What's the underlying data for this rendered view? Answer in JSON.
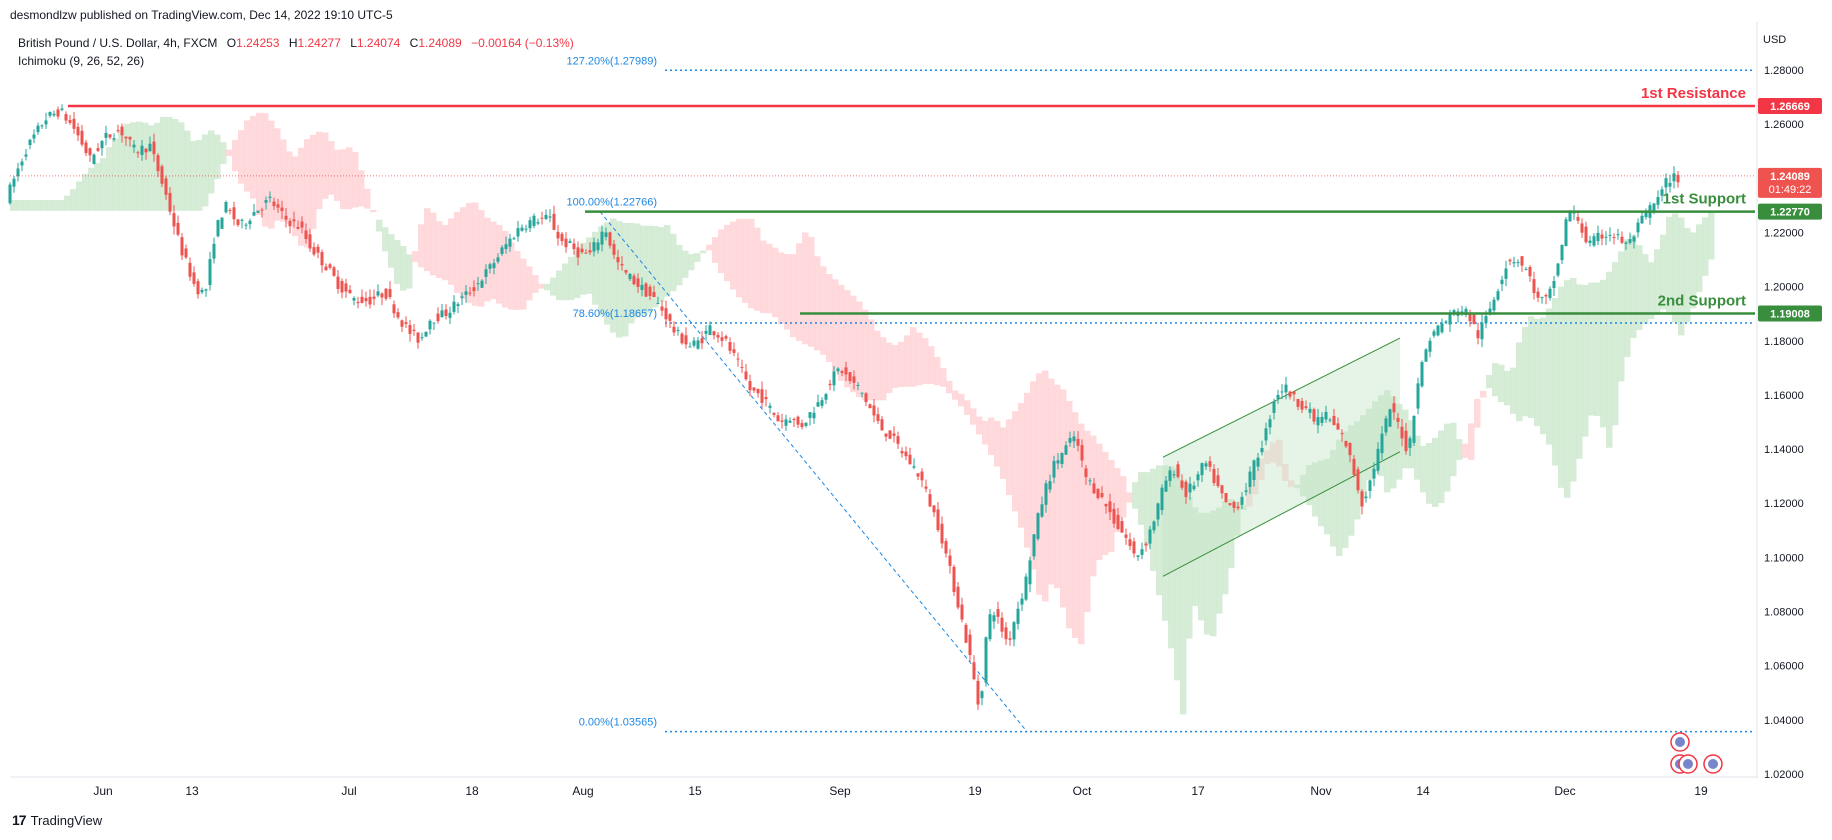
{
  "header": {
    "published": "desmondlzw published on TradingView.com, Dec 14, 2022 19:10 UTC-5",
    "symbol": "British Pound / U.S. Dollar, 4h, FXCM",
    "ohlc": {
      "o_label": "O",
      "o": "1.24253",
      "h_label": "H",
      "h": "1.24277",
      "l_label": "L",
      "l": "1.24074",
      "c_label": "C",
      "c": "1.24089",
      "change": "−0.00164 (−0.13%)"
    },
    "indicator": "Ichimoku (9, 26, 52, 26)",
    "currency": "USD"
  },
  "footer": {
    "brand": "TradingView",
    "brand_mark": "17"
  },
  "colors": {
    "bull": "#26a69a",
    "bear": "#ef5350",
    "support": "#388e3c",
    "resistance": "#f23645",
    "fib": "#1e88e5",
    "cloud_bull": "#c8e6c9",
    "cloud_bear": "#ffcdd2"
  },
  "chart_data": {
    "type": "candlestick",
    "timeframe": "4h",
    "x_tick_labels": [
      "Jun",
      "13",
      "Jul",
      "18",
      "Aug",
      "15",
      "Sep",
      "19",
      "Oct",
      "17",
      "Nov",
      "14",
      "Dec",
      "19"
    ],
    "y_tick_labels": [
      "1.28000",
      "1.26000",
      "1.24000",
      "1.22000",
      "1.20000",
      "1.18000",
      "1.16000",
      "1.14000",
      "1.12000",
      "1.10000",
      "1.08000",
      "1.06000",
      "1.04000",
      "1.02000"
    ],
    "ylim": [
      1.0175,
      1.305
    ],
    "last_price": {
      "value": 1.24089,
      "label": "1.24089",
      "countdown": "01:49:22"
    },
    "levels": [
      {
        "name": "1st Resistance",
        "value": 1.26669,
        "label": "1.26669",
        "kind": "resistance"
      },
      {
        "name": "1st Support",
        "value": 1.2277,
        "label": "1.22770",
        "kind": "support"
      },
      {
        "name": "2nd Support",
        "value": 1.19008,
        "label": "1.19008",
        "kind": "support"
      }
    ],
    "fibonacci": [
      {
        "label": "127.20%(1.27989)",
        "value": 1.27989
      },
      {
        "label": "100.00%(1.22766)",
        "value": 1.22766
      },
      {
        "label": "78.60%(1.18657)",
        "value": 1.18657
      },
      {
        "label": "0.00%(1.03565)",
        "value": 1.03565
      }
    ],
    "price_path": [
      [
        0,
        1.228
      ],
      [
        10,
        1.236
      ],
      [
        25,
        1.25
      ],
      [
        45,
        1.262
      ],
      [
        60,
        1.265
      ],
      [
        75,
        1.258
      ],
      [
        90,
        1.247
      ],
      [
        105,
        1.255
      ],
      [
        120,
        1.258
      ],
      [
        135,
        1.25
      ],
      [
        150,
        1.252
      ],
      [
        165,
        1.235
      ],
      [
        180,
        1.215
      ],
      [
        195,
        1.2
      ],
      [
        205,
        1.197
      ],
      [
        215,
        1.22
      ],
      [
        225,
        1.23
      ],
      [
        240,
        1.222
      ],
      [
        255,
        1.228
      ],
      [
        270,
        1.232
      ],
      [
        285,
        1.225
      ],
      [
        300,
        1.222
      ],
      [
        310,
        1.215
      ],
      [
        325,
        1.208
      ],
      [
        340,
        1.2
      ],
      [
        355,
        1.195
      ],
      [
        370,
        1.195
      ],
      [
        385,
        1.198
      ],
      [
        400,
        1.188
      ],
      [
        410,
        1.183
      ],
      [
        420,
        1.18
      ],
      [
        430,
        1.188
      ],
      [
        445,
        1.19
      ],
      [
        460,
        1.195
      ],
      [
        475,
        1.2
      ],
      [
        490,
        1.207
      ],
      [
        505,
        1.215
      ],
      [
        520,
        1.222
      ],
      [
        535,
        1.225
      ],
      [
        550,
        1.225
      ],
      [
        560,
        1.217
      ],
      [
        570,
        1.215
      ],
      [
        580,
        1.212
      ],
      [
        590,
        1.212
      ],
      [
        605,
        1.222
      ],
      [
        615,
        1.21
      ],
      [
        625,
        1.205
      ],
      [
        640,
        1.2
      ],
      [
        655,
        1.195
      ],
      [
        665,
        1.19
      ],
      [
        675,
        1.183
      ],
      [
        690,
        1.178
      ],
      [
        700,
        1.18
      ],
      [
        710,
        1.185
      ],
      [
        725,
        1.18
      ],
      [
        740,
        1.17
      ],
      [
        750,
        1.162
      ],
      [
        760,
        1.16
      ],
      [
        770,
        1.155
      ],
      [
        780,
        1.15
      ],
      [
        790,
        1.152
      ],
      [
        800,
        1.148
      ],
      [
        810,
        1.153
      ],
      [
        820,
        1.158
      ],
      [
        830,
        1.165
      ],
      [
        840,
        1.17
      ],
      [
        850,
        1.165
      ],
      [
        860,
        1.162
      ],
      [
        870,
        1.155
      ],
      [
        880,
        1.148
      ],
      [
        890,
        1.145
      ],
      [
        900,
        1.14
      ],
      [
        910,
        1.135
      ],
      [
        920,
        1.13
      ],
      [
        930,
        1.12
      ],
      [
        940,
        1.11
      ],
      [
        950,
        1.095
      ],
      [
        960,
        1.08
      ],
      [
        970,
        1.063
      ],
      [
        980,
        1.042
      ],
      [
        985,
        1.068
      ],
      [
        992,
        1.082
      ],
      [
        1000,
        1.075
      ],
      [
        1008,
        1.068
      ],
      [
        1015,
        1.078
      ],
      [
        1025,
        1.09
      ],
      [
        1035,
        1.11
      ],
      [
        1045,
        1.125
      ],
      [
        1055,
        1.135
      ],
      [
        1065,
        1.14
      ],
      [
        1075,
        1.145
      ],
      [
        1085,
        1.13
      ],
      [
        1095,
        1.125
      ],
      [
        1105,
        1.12
      ],
      [
        1115,
        1.113
      ],
      [
        1125,
        1.108
      ],
      [
        1135,
        1.1
      ],
      [
        1145,
        1.105
      ],
      [
        1155,
        1.115
      ],
      [
        1165,
        1.128
      ],
      [
        1175,
        1.133
      ],
      [
        1185,
        1.123
      ],
      [
        1195,
        1.128
      ],
      [
        1205,
        1.135
      ],
      [
        1215,
        1.128
      ],
      [
        1225,
        1.12
      ],
      [
        1235,
        1.118
      ],
      [
        1245,
        1.125
      ],
      [
        1255,
        1.135
      ],
      [
        1265,
        1.145
      ],
      [
        1275,
        1.16
      ],
      [
        1285,
        1.163
      ],
      [
        1295,
        1.158
      ],
      [
        1305,
        1.156
      ],
      [
        1315,
        1.15
      ],
      [
        1325,
        1.153
      ],
      [
        1335,
        1.148
      ],
      [
        1345,
        1.143
      ],
      [
        1355,
        1.13
      ],
      [
        1362,
        1.12
      ],
      [
        1370,
        1.128
      ],
      [
        1380,
        1.142
      ],
      [
        1390,
        1.155
      ],
      [
        1400,
        1.148
      ],
      [
        1408,
        1.138
      ],
      [
        1418,
        1.165
      ],
      [
        1428,
        1.18
      ],
      [
        1438,
        1.185
      ],
      [
        1448,
        1.188
      ],
      [
        1458,
        1.192
      ],
      [
        1468,
        1.19
      ],
      [
        1478,
        1.182
      ],
      [
        1488,
        1.19
      ],
      [
        1498,
        1.2
      ],
      [
        1508,
        1.21
      ],
      [
        1518,
        1.21
      ],
      [
        1528,
        1.205
      ],
      [
        1538,
        1.195
      ],
      [
        1548,
        1.195
      ],
      [
        1558,
        1.208
      ],
      [
        1568,
        1.228
      ],
      [
        1578,
        1.225
      ],
      [
        1588,
        1.215
      ],
      [
        1598,
        1.218
      ],
      [
        1608,
        1.22
      ],
      [
        1618,
        1.218
      ],
      [
        1628,
        1.215
      ],
      [
        1638,
        1.222
      ],
      [
        1648,
        1.228
      ],
      [
        1658,
        1.232
      ],
      [
        1668,
        1.24
      ],
      [
        1678,
        1.24
      ]
    ]
  }
}
